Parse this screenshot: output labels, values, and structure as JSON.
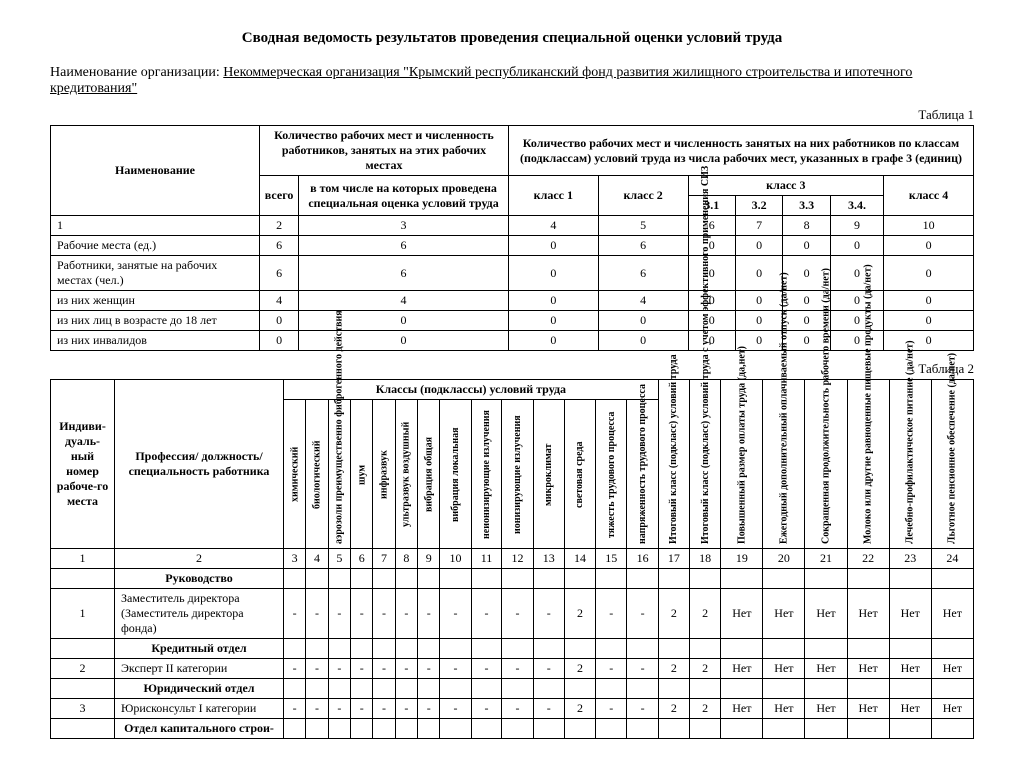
{
  "title": "Сводная ведомость результатов проведения специальной оценки условий труда",
  "org_prefix": "Наименование организации:",
  "org_name": "Некоммерческая организация \"Крымский республиканский фонд развития жилищного строительства и ипотечного кредитования\"",
  "table1_label": "Таблица 1",
  "table2_label": "Таблица 2",
  "t1": {
    "h_name": "Наименование",
    "h_qty": "Количество рабочих мест и численность работников, занятых на этих рабочих местах",
    "h_classes": "Количество рабочих мест и численность занятых на них работников по классам (подклассам) условий труда из числа рабочих мест, указанных в графе 3 (единиц)",
    "h_total": "всего",
    "h_incl": "в том числе на которых проведена специальная оценка условий труда",
    "h_c1": "класс 1",
    "h_c2": "класс 2",
    "h_c3": "класс 3",
    "h_c31": "3.1",
    "h_c32": "3.2",
    "h_c33": "3.3",
    "h_c34": "3.4.",
    "h_c4": "класс 4",
    "numrow": [
      "1",
      "2",
      "3",
      "4",
      "5",
      "6",
      "7",
      "8",
      "9",
      "10"
    ],
    "rows": [
      {
        "name": "Рабочие места (ед.)",
        "v": [
          "6",
          "6",
          "0",
          "6",
          "0",
          "0",
          "0",
          "0",
          "0"
        ]
      },
      {
        "name": "Работники, занятые на рабочих местах (чел.)",
        "v": [
          "6",
          "6",
          "0",
          "6",
          "0",
          "0",
          "0",
          "0",
          "0"
        ]
      },
      {
        "name": "из них женщин",
        "v": [
          "4",
          "4",
          "0",
          "4",
          "0",
          "0",
          "0",
          "0",
          "0"
        ]
      },
      {
        "name": "из них лиц в возрасте до 18 лет",
        "v": [
          "0",
          "0",
          "0",
          "0",
          "0",
          "0",
          "0",
          "0",
          "0"
        ]
      },
      {
        "name": "из них инвалидов",
        "v": [
          "0",
          "0",
          "0",
          "0",
          "0",
          "0",
          "0",
          "0",
          "0"
        ]
      }
    ]
  },
  "t2": {
    "h_id": "Индиви-дуаль-ный номер рабоче-го места",
    "h_prof": "Профессия/ должность/ специальность работника",
    "h_classes": "Классы (подклассы) условий труда",
    "cols": [
      "химический",
      "биологический",
      "аэрозоли преимущественно фиброгенного действия",
      "шум",
      "инфразвук",
      "ультразвук воздушный",
      "вибрация общая",
      "вибрация локальная",
      "неионизирующие излучения",
      "ионизирующие излучения",
      "микроклимат",
      "световая среда",
      "тяжесть трудового процесса",
      "напряженность трудового процесса",
      "Итоговый класс (подкласс) условий труда",
      "Итоговый класс (подкласс) условий труда с учетом эффективного применения СИЗ",
      "Повышенный размер оплаты труда (да,нет)",
      "Ежегодный дополнительный оплачиваемый отпуск (да/нет)",
      "Сокращенная продолжительность рабочего времени (да/нет)",
      "Молоко или другие равноценные пищевые продукты (да/нет)",
      "Лечебно-профилактическое питание (да/нет)",
      "Льготное пенсионное обеспечение (да/нет)"
    ],
    "numrow": [
      "1",
      "2",
      "3",
      "4",
      "5",
      "6",
      "7",
      "8",
      "9",
      "10",
      "11",
      "12",
      "13",
      "14",
      "15",
      "16",
      "17",
      "18",
      "19",
      "20",
      "21",
      "22",
      "23",
      "24"
    ],
    "sections": [
      {
        "title": "Руководство"
      },
      {
        "id": "1",
        "name": "Заместитель директора (Заместитель директора фонда)",
        "v": [
          "-",
          "-",
          "-",
          "-",
          "-",
          "-",
          "-",
          "-",
          "-",
          "-",
          "-",
          "2",
          "-",
          "-",
          "2",
          "2",
          "Нет",
          "Нет",
          "Нет",
          "Нет",
          "Нет",
          "Нет"
        ]
      },
      {
        "title": "Кредитный отдел"
      },
      {
        "id": "2",
        "name": "Эксперт II категории",
        "v": [
          "-",
          "-",
          "-",
          "-",
          "-",
          "-",
          "-",
          "-",
          "-",
          "-",
          "-",
          "2",
          "-",
          "-",
          "2",
          "2",
          "Нет",
          "Нет",
          "Нет",
          "Нет",
          "Нет",
          "Нет"
        ]
      },
      {
        "title": "Юридический отдел"
      },
      {
        "id": "3",
        "name": "Юрисконсульт I категории",
        "v": [
          "-",
          "-",
          "-",
          "-",
          "-",
          "-",
          "-",
          "-",
          "-",
          "-",
          "-",
          "2",
          "-",
          "-",
          "2",
          "2",
          "Нет",
          "Нет",
          "Нет",
          "Нет",
          "Нет",
          "Нет"
        ]
      },
      {
        "title": "Отдел капитального строи-"
      }
    ]
  }
}
